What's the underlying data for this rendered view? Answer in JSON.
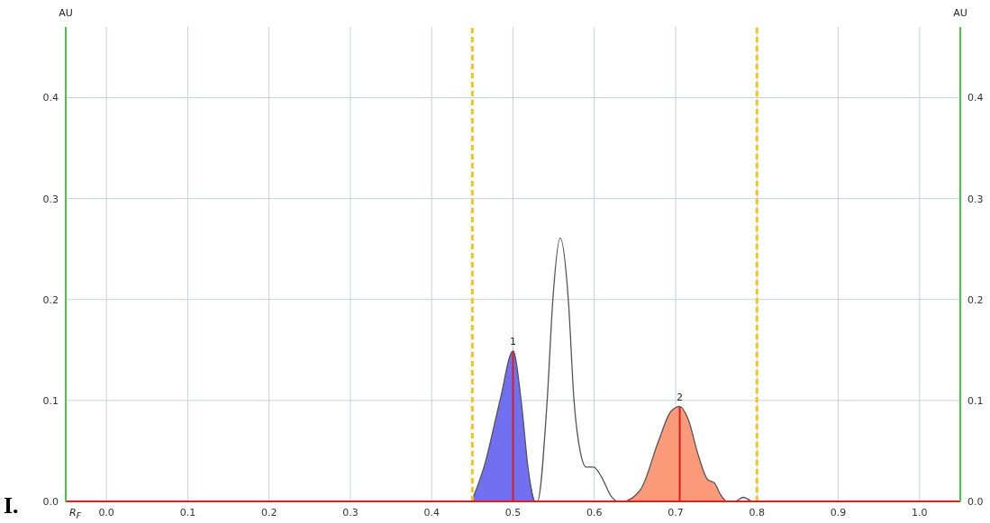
{
  "chart_data": {
    "type": "line",
    "xlabel": "R$_{F}$",
    "ylabel": "AU",
    "y2label": "AU",
    "xlim": [
      -0.05,
      1.05
    ],
    "ylim": [
      0,
      0.47
    ],
    "y2lim": [
      0,
      0.47
    ],
    "xticks": [
      {
        "value": 0,
        "label": "0.0"
      },
      0.1,
      0.2,
      0.3,
      0.4,
      0.5,
      0.6,
      0.7,
      0.8,
      0.9,
      {
        "value": 1,
        "label": "1.0"
      }
    ],
    "yticks": [
      {
        "value": 0,
        "label": "0.0"
      },
      0.1,
      0.2,
      0.3,
      0.4
    ],
    "y2ticks": [
      {
        "value": 0,
        "label": "0.0"
      },
      0.1,
      0.2,
      0.3,
      0.4
    ],
    "grid": true,
    "legend": false,
    "marker": "none",
    "series": [
      {
        "type": "area",
        "color": "#7070f0",
        "x": [
          0.449,
          0.465,
          0.484,
          0.5,
          0.51,
          0.519,
          0.527
        ],
        "values": [
          0,
          0.036,
          0.1,
          0.149,
          0.1,
          0.03,
          0
        ]
      },
      {
        "type": "area",
        "color": "#fa9a78",
        "x": [
          0.635,
          0.657,
          0.679,
          0.694,
          0.705,
          0.716,
          0.727,
          0.739,
          0.748,
          0.755,
          0.763
        ],
        "values": [
          0,
          0.012,
          0.06,
          0.089,
          0.094,
          0.08,
          0.048,
          0.022,
          0.018,
          0.007,
          0
        ]
      },
      {
        "color": "#555555",
        "line_style": "solid",
        "x": [
          0.449,
          0.465,
          0.484,
          0.5,
          0.51,
          0.519,
          0.527,
          0.53,
          0.542,
          0.549,
          0.558,
          0.568,
          0.575,
          0.583,
          0.59,
          0.599,
          0.609,
          0.62,
          0.629,
          0.635,
          0.657,
          0.679,
          0.694,
          0.705,
          0.716,
          0.727,
          0.739,
          0.748,
          0.755,
          0.763,
          0.773,
          0.783,
          0.793
        ],
        "values": [
          0,
          0.036,
          0.1,
          0.149,
          0.1,
          0.03,
          0,
          0,
          0.1,
          0.2,
          0.261,
          0.2,
          0.1,
          0.048,
          0.034,
          0.034,
          0.024,
          0.006,
          0,
          0,
          0.012,
          0.06,
          0.089,
          0.094,
          0.08,
          0.048,
          0.022,
          0.018,
          0.007,
          0,
          0,
          0.004,
          0
        ]
      }
    ],
    "ref_lines": [
      {
        "axis": "x",
        "value": 0.45,
        "color": "#f5c518",
        "line_style": "dashed"
      },
      {
        "axis": "x",
        "value": 0.8,
        "color": "#f5c518",
        "line_style": "dashed"
      }
    ],
    "annotations": [
      {
        "text": "1",
        "x": 0.5,
        "y": 0.149
      },
      {
        "text": "2",
        "x": 0.705,
        "y": 0.094
      },
      "I."
    ]
  }
}
